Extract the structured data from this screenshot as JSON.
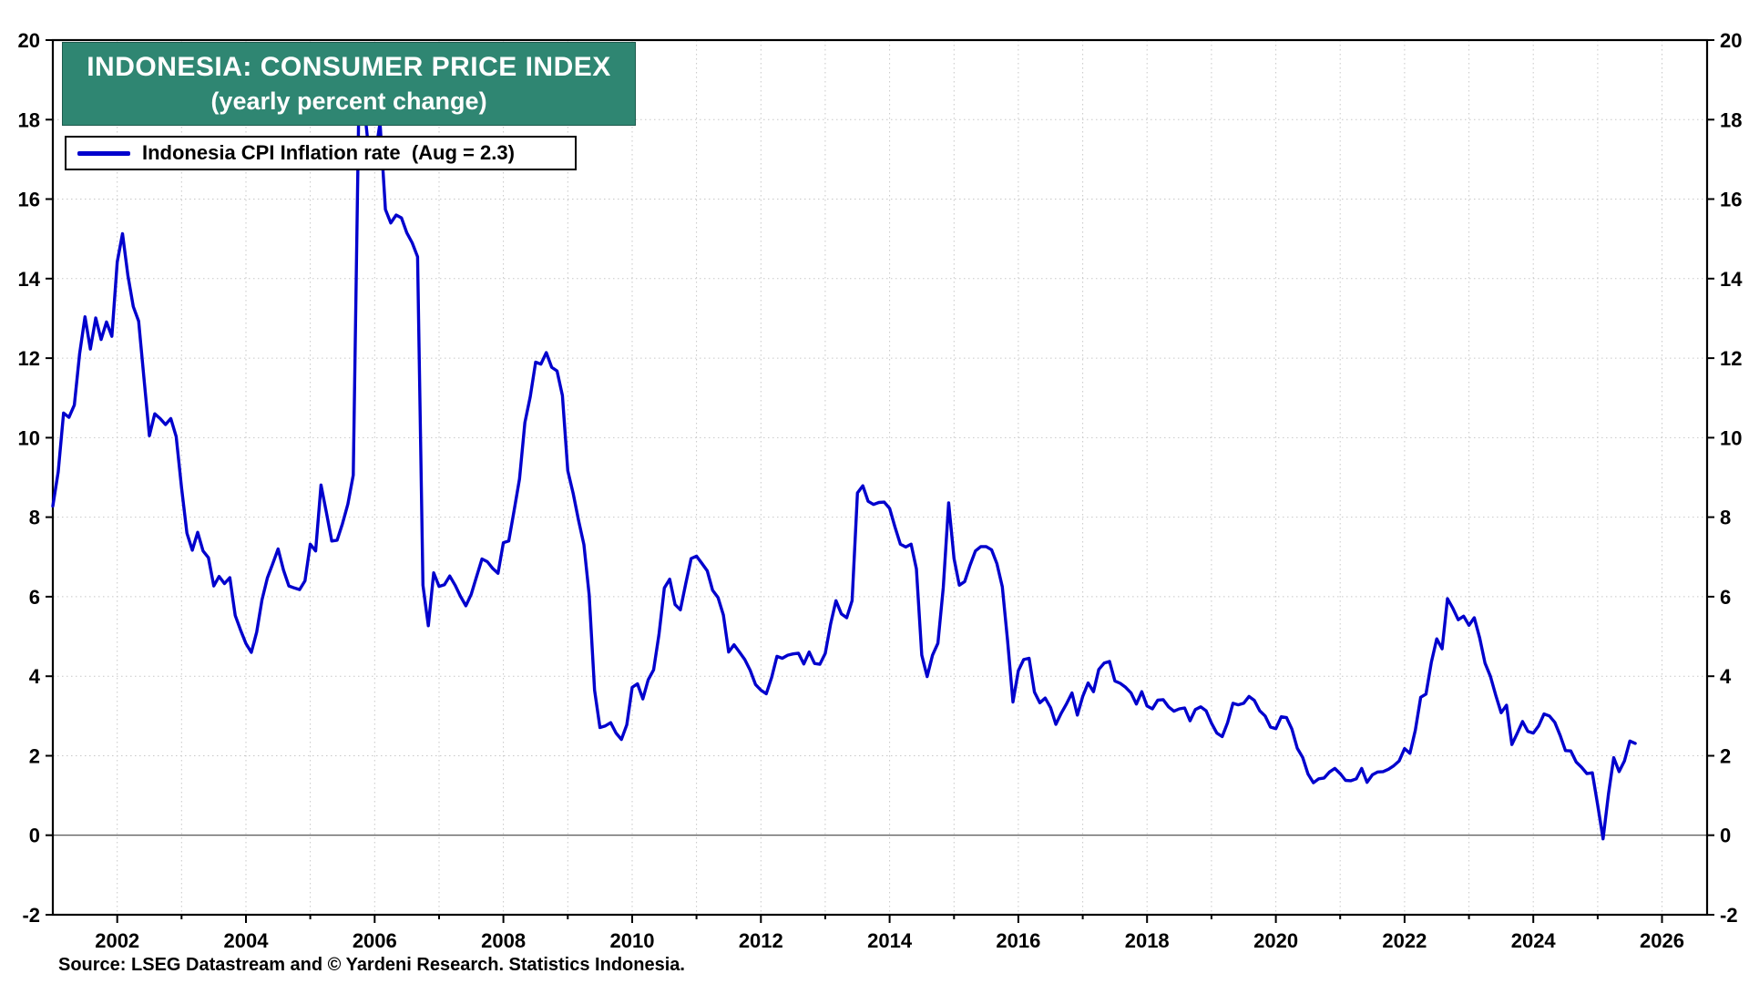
{
  "header": {
    "title": "INDONESIA: CONSUMER PRICE INDEX",
    "subtitle": "(yearly percent change)",
    "title_bg_color": "#2f8672",
    "title_text_color": "#ffffff"
  },
  "legend": {
    "label": "Indonesia CPI Inflation rate  (Aug = 2.3)",
    "line_color": "#0000cd"
  },
  "footer": {
    "source": "Source: LSEG Datastream and © Yardeni Research. Statistics Indonesia."
  },
  "chart_data": {
    "type": "line",
    "title": "INDONESIA: CONSUMER PRICE INDEX",
    "subtitle": "(yearly percent change)",
    "legend_entries": [
      "Indonesia CPI Inflation rate  (Aug = 2.3)"
    ],
    "frequency": "monthly",
    "start": "2001-01",
    "end": "2025-08",
    "line_color": "#0000cd",
    "grid_color": "#c7c7c7",
    "x_axis": {
      "min": 2001,
      "max": 2026.7,
      "label_years": [
        2002,
        2004,
        2006,
        2008,
        2010,
        2012,
        2014,
        2016,
        2018,
        2020,
        2022,
        2024,
        2026
      ],
      "minor_tick_step_years": 1
    },
    "y_axis": {
      "min": -2,
      "max": 20,
      "tick_step": 2,
      "tick_labels": [
        20,
        18,
        16,
        14,
        12,
        10,
        8,
        6,
        4,
        2,
        0,
        -2
      ],
      "labels_on_both_sides": true,
      "zero_line": true
    },
    "values_by_year": {
      "2001": [
        8.28,
        9.14,
        10.62,
        10.51,
        10.82,
        12.11,
        13.04,
        12.23,
        13.01,
        12.47,
        12.91,
        12.55
      ],
      "2002": [
        14.42,
        15.13,
        14.08,
        13.3,
        12.93,
        11.48,
        10.05,
        10.6,
        10.48,
        10.33,
        10.48,
        10.03
      ],
      "2003": [
        8.74,
        7.6,
        7.17,
        7.62,
        7.15,
        6.98,
        6.27,
        6.51,
        6.33,
        6.48,
        5.53,
        5.16
      ],
      "2004": [
        4.82,
        4.6,
        5.11,
        5.92,
        6.47,
        6.83,
        7.2,
        6.67,
        6.27,
        6.22,
        6.18,
        6.4
      ],
      "2005": [
        7.32,
        7.15,
        8.81,
        8.12,
        7.4,
        7.42,
        7.84,
        8.33,
        9.06,
        17.89,
        18.38,
        17.11
      ],
      "2006": [
        17.03,
        17.92,
        15.74,
        15.4,
        15.6,
        15.53,
        15.15,
        14.9,
        14.55,
        6.29,
        5.27,
        6.6
      ],
      "2007": [
        6.26,
        6.3,
        6.52,
        6.29,
        6.01,
        5.77,
        6.06,
        6.51,
        6.95,
        6.88,
        6.71,
        6.59
      ],
      "2008": [
        7.36,
        7.4,
        8.17,
        8.96,
        10.38,
        11.03,
        11.9,
        11.85,
        12.14,
        11.77,
        11.68,
        11.06
      ],
      "2009": [
        9.17,
        8.6,
        7.92,
        7.31,
        6.04,
        3.65,
        2.71,
        2.75,
        2.83,
        2.57,
        2.41,
        2.78
      ],
      "2010": [
        3.72,
        3.81,
        3.43,
        3.91,
        4.16,
        5.05,
        6.22,
        6.44,
        5.8,
        5.67,
        6.33,
        6.96
      ],
      "2011": [
        7.02,
        6.84,
        6.65,
        6.16,
        5.98,
        5.54,
        4.61,
        4.79,
        4.61,
        4.42,
        4.15,
        3.79
      ],
      "2012": [
        3.65,
        3.56,
        3.97,
        4.5,
        4.45,
        4.53,
        4.56,
        4.58,
        4.31,
        4.61,
        4.32,
        4.3
      ],
      "2013": [
        4.57,
        5.31,
        5.9,
        5.57,
        5.47,
        5.9,
        8.61,
        8.79,
        8.4,
        8.32,
        8.37,
        8.38
      ],
      "2014": [
        8.22,
        7.75,
        7.32,
        7.25,
        7.32,
        6.7,
        4.53,
        3.99,
        4.53,
        4.83,
        6.23,
        8.36
      ],
      "2015": [
        6.96,
        6.29,
        6.38,
        6.79,
        7.15,
        7.26,
        7.26,
        7.18,
        6.83,
        6.25,
        4.89,
        3.35
      ],
      "2016": [
        4.14,
        4.42,
        4.45,
        3.6,
        3.33,
        3.45,
        3.21,
        2.79,
        3.07,
        3.31,
        3.58,
        3.02
      ],
      "2017": [
        3.49,
        3.83,
        3.61,
        4.17,
        4.33,
        4.37,
        3.88,
        3.82,
        3.72,
        3.58,
        3.3,
        3.61
      ],
      "2018": [
        3.25,
        3.18,
        3.4,
        3.41,
        3.23,
        3.12,
        3.18,
        3.2,
        2.88,
        3.16,
        3.23,
        3.13
      ],
      "2019": [
        2.82,
        2.57,
        2.48,
        2.83,
        3.32,
        3.28,
        3.32,
        3.49,
        3.39,
        3.13,
        3.0,
        2.72
      ],
      "2020": [
        2.68,
        2.98,
        2.96,
        2.67,
        2.19,
        1.96,
        1.54,
        1.32,
        1.42,
        1.44,
        1.59,
        1.68
      ],
      "2021": [
        1.55,
        1.38,
        1.37,
        1.42,
        1.68,
        1.33,
        1.52,
        1.59,
        1.6,
        1.66,
        1.75,
        1.87
      ],
      "2022": [
        2.18,
        2.06,
        2.64,
        3.47,
        3.55,
        4.35,
        4.94,
        4.69,
        5.95,
        5.71,
        5.42,
        5.51
      ],
      "2023": [
        5.28,
        5.47,
        4.97,
        4.33,
        4.0,
        3.52,
        3.08,
        3.27,
        2.28,
        2.56,
        2.86,
        2.61
      ],
      "2024": [
        2.57,
        2.75,
        3.05,
        3.0,
        2.84,
        2.51,
        2.13,
        2.12,
        1.84,
        1.71,
        1.55,
        1.57
      ],
      "2025": [
        0.76,
        -0.09,
        1.03,
        1.95,
        1.6,
        1.87,
        2.37,
        2.31
      ]
    }
  }
}
